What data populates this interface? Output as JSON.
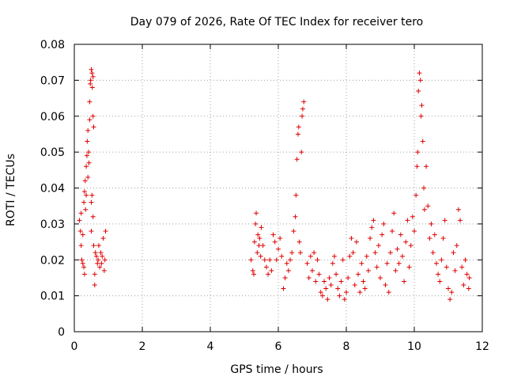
{
  "chart_data": {
    "type": "scatter",
    "title": "Day 079 of 2026, Rate Of TEC Index for receiver tero",
    "xlabel": "GPS time / hours",
    "ylabel": "ROTI / TECUs",
    "xlim": [
      0,
      12
    ],
    "ylim": [
      0,
      0.08
    ],
    "xticks": [
      "0",
      "2",
      "4",
      "6",
      "8",
      "10",
      "12"
    ],
    "yticks": [
      "0",
      "0.01",
      "0.02",
      "0.03",
      "0.04",
      "0.05",
      "0.06",
      "0.07",
      "0.08"
    ],
    "grid": true,
    "marker": "plus",
    "color": "#e00000",
    "series": [
      {
        "points": [
          [
            0.15,
            0.031
          ],
          [
            0.18,
            0.028
          ],
          [
            0.2,
            0.033
          ],
          [
            0.2,
            0.024
          ],
          [
            0.22,
            0.02
          ],
          [
            0.25,
            0.019
          ],
          [
            0.25,
            0.027
          ],
          [
            0.28,
            0.036
          ],
          [
            0.28,
            0.018
          ],
          [
            0.3,
            0.016
          ],
          [
            0.3,
            0.039
          ],
          [
            0.32,
            0.042
          ],
          [
            0.33,
            0.034
          ],
          [
            0.35,
            0.038
          ],
          [
            0.35,
            0.046
          ],
          [
            0.37,
            0.049
          ],
          [
            0.38,
            0.053
          ],
          [
            0.4,
            0.056
          ],
          [
            0.4,
            0.043
          ],
          [
            0.42,
            0.05
          ],
          [
            0.43,
            0.047
          ],
          [
            0.45,
            0.059
          ],
          [
            0.45,
            0.064
          ],
          [
            0.47,
            0.069
          ],
          [
            0.48,
            0.07
          ],
          [
            0.5,
            0.073
          ],
          [
            0.5,
            0.036
          ],
          [
            0.52,
            0.072
          ],
          [
            0.53,
            0.068
          ],
          [
            0.55,
            0.071
          ],
          [
            0.55,
            0.06
          ],
          [
            0.57,
            0.057
          ],
          [
            0.5,
            0.028
          ],
          [
            0.52,
            0.038
          ],
          [
            0.55,
            0.032
          ],
          [
            0.57,
            0.024
          ],
          [
            0.6,
            0.016
          ],
          [
            0.6,
            0.013
          ],
          [
            0.62,
            0.022
          ],
          [
            0.65,
            0.021
          ],
          [
            0.68,
            0.019
          ],
          [
            0.7,
            0.02
          ],
          [
            0.72,
            0.024
          ],
          [
            0.75,
            0.018
          ],
          [
            0.78,
            0.022
          ],
          [
            0.8,
            0.019
          ],
          [
            0.82,
            0.021
          ],
          [
            0.85,
            0.026
          ],
          [
            0.88,
            0.017
          ],
          [
            0.9,
            0.02
          ],
          [
            0.92,
            0.028
          ],
          [
            5.2,
            0.02
          ],
          [
            5.25,
            0.017
          ],
          [
            5.28,
            0.016
          ],
          [
            5.3,
            0.025
          ],
          [
            5.33,
            0.03
          ],
          [
            5.35,
            0.033
          ],
          [
            5.38,
            0.022
          ],
          [
            5.4,
            0.027
          ],
          [
            5.43,
            0.024
          ],
          [
            5.45,
            0.026
          ],
          [
            5.48,
            0.021
          ],
          [
            5.5,
            0.029
          ],
          [
            5.55,
            0.024
          ],
          [
            5.6,
            0.02
          ],
          [
            5.65,
            0.018
          ],
          [
            5.7,
            0.016
          ],
          [
            5.75,
            0.02
          ],
          [
            5.8,
            0.017
          ],
          [
            5.85,
            0.027
          ],
          [
            5.9,
            0.025
          ],
          [
            5.95,
            0.02
          ],
          [
            6.0,
            0.023
          ],
          [
            6.05,
            0.026
          ],
          [
            6.1,
            0.021
          ],
          [
            6.15,
            0.012
          ],
          [
            6.2,
            0.015
          ],
          [
            6.25,
            0.019
          ],
          [
            6.3,
            0.017
          ],
          [
            6.35,
            0.02
          ],
          [
            6.4,
            0.022
          ],
          [
            6.45,
            0.028
          ],
          [
            6.5,
            0.032
          ],
          [
            6.52,
            0.038
          ],
          [
            6.55,
            0.048
          ],
          [
            6.58,
            0.055
          ],
          [
            6.6,
            0.057
          ],
          [
            6.62,
            0.025
          ],
          [
            6.65,
            0.022
          ],
          [
            6.68,
            0.05
          ],
          [
            6.7,
            0.06
          ],
          [
            6.72,
            0.062
          ],
          [
            6.75,
            0.064
          ],
          [
            6.85,
            0.019
          ],
          [
            6.9,
            0.015
          ],
          [
            6.95,
            0.021
          ],
          [
            7.0,
            0.017
          ],
          [
            7.05,
            0.022
          ],
          [
            7.1,
            0.014
          ],
          [
            7.15,
            0.02
          ],
          [
            7.2,
            0.016
          ],
          [
            7.25,
            0.011
          ],
          [
            7.3,
            0.01
          ],
          [
            7.35,
            0.014
          ],
          [
            7.4,
            0.012
          ],
          [
            7.45,
            0.009
          ],
          [
            7.5,
            0.015
          ],
          [
            7.55,
            0.013
          ],
          [
            7.6,
            0.019
          ],
          [
            7.65,
            0.021
          ],
          [
            7.7,
            0.016
          ],
          [
            7.75,
            0.012
          ],
          [
            7.8,
            0.01
          ],
          [
            7.85,
            0.014
          ],
          [
            7.9,
            0.02
          ],
          [
            7.95,
            0.009
          ],
          [
            8.0,
            0.011
          ],
          [
            8.05,
            0.015
          ],
          [
            8.1,
            0.021
          ],
          [
            8.15,
            0.026
          ],
          [
            8.2,
            0.022
          ],
          [
            8.25,
            0.013
          ],
          [
            8.3,
            0.025
          ],
          [
            8.35,
            0.016
          ],
          [
            8.4,
            0.011
          ],
          [
            8.45,
            0.019
          ],
          [
            8.5,
            0.014
          ],
          [
            8.55,
            0.012
          ],
          [
            8.6,
            0.021
          ],
          [
            8.65,
            0.017
          ],
          [
            8.7,
            0.026
          ],
          [
            8.75,
            0.029
          ],
          [
            8.8,
            0.031
          ],
          [
            8.85,
            0.022
          ],
          [
            8.9,
            0.018
          ],
          [
            8.95,
            0.024
          ],
          [
            9.0,
            0.015
          ],
          [
            9.05,
            0.027
          ],
          [
            9.1,
            0.03
          ],
          [
            9.15,
            0.013
          ],
          [
            9.2,
            0.019
          ],
          [
            9.25,
            0.011
          ],
          [
            9.3,
            0.022
          ],
          [
            9.35,
            0.028
          ],
          [
            9.4,
            0.033
          ],
          [
            9.45,
            0.017
          ],
          [
            9.5,
            0.023
          ],
          [
            9.55,
            0.019
          ],
          [
            9.6,
            0.027
          ],
          [
            9.65,
            0.021
          ],
          [
            9.7,
            0.014
          ],
          [
            9.75,
            0.025
          ],
          [
            9.8,
            0.031
          ],
          [
            9.85,
            0.018
          ],
          [
            9.9,
            0.024
          ],
          [
            9.95,
            0.032
          ],
          [
            10.0,
            0.028
          ],
          [
            10.05,
            0.038
          ],
          [
            10.08,
            0.046
          ],
          [
            10.1,
            0.05
          ],
          [
            10.12,
            0.067
          ],
          [
            10.15,
            0.072
          ],
          [
            10.18,
            0.07
          ],
          [
            10.2,
            0.06
          ],
          [
            10.22,
            0.063
          ],
          [
            10.25,
            0.053
          ],
          [
            10.28,
            0.04
          ],
          [
            10.3,
            0.034
          ],
          [
            10.35,
            0.046
          ],
          [
            10.4,
            0.035
          ],
          [
            10.45,
            0.026
          ],
          [
            10.5,
            0.03
          ],
          [
            10.55,
            0.022
          ],
          [
            10.6,
            0.027
          ],
          [
            10.65,
            0.019
          ],
          [
            10.7,
            0.016
          ],
          [
            10.75,
            0.014
          ],
          [
            10.8,
            0.02
          ],
          [
            10.85,
            0.026
          ],
          [
            10.9,
            0.031
          ],
          [
            10.95,
            0.018
          ],
          [
            11.0,
            0.012
          ],
          [
            11.05,
            0.009
          ],
          [
            11.1,
            0.011
          ],
          [
            11.15,
            0.022
          ],
          [
            11.2,
            0.017
          ],
          [
            11.25,
            0.024
          ],
          [
            11.3,
            0.034
          ],
          [
            11.35,
            0.031
          ],
          [
            11.4,
            0.018
          ],
          [
            11.45,
            0.013
          ],
          [
            11.5,
            0.02
          ],
          [
            11.55,
            0.016
          ],
          [
            11.6,
            0.012
          ],
          [
            11.62,
            0.015
          ]
        ]
      }
    ]
  }
}
